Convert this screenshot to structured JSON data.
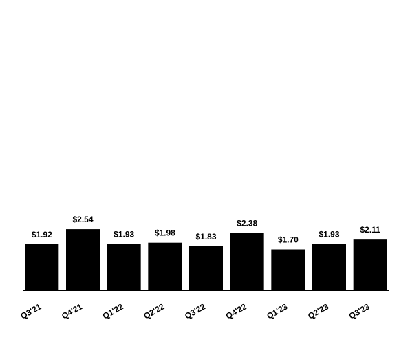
{
  "chart_data": {
    "type": "bar",
    "categories": [
      "Q3'21",
      "Q4'21",
      "Q1'22",
      "Q2'22",
      "Q3'22",
      "Q4'22",
      "Q1'23",
      "Q2'23",
      "Q3'23"
    ],
    "values": [
      1.92,
      2.54,
      1.93,
      1.98,
      1.83,
      2.38,
      1.7,
      1.93,
      2.11
    ],
    "value_labels": [
      "$1.92",
      "$2.54",
      "$1.93",
      "$1.98",
      "$1.83",
      "$2.38",
      "$1.70",
      "$1.93",
      "$2.11"
    ],
    "color": "#000000"
  }
}
